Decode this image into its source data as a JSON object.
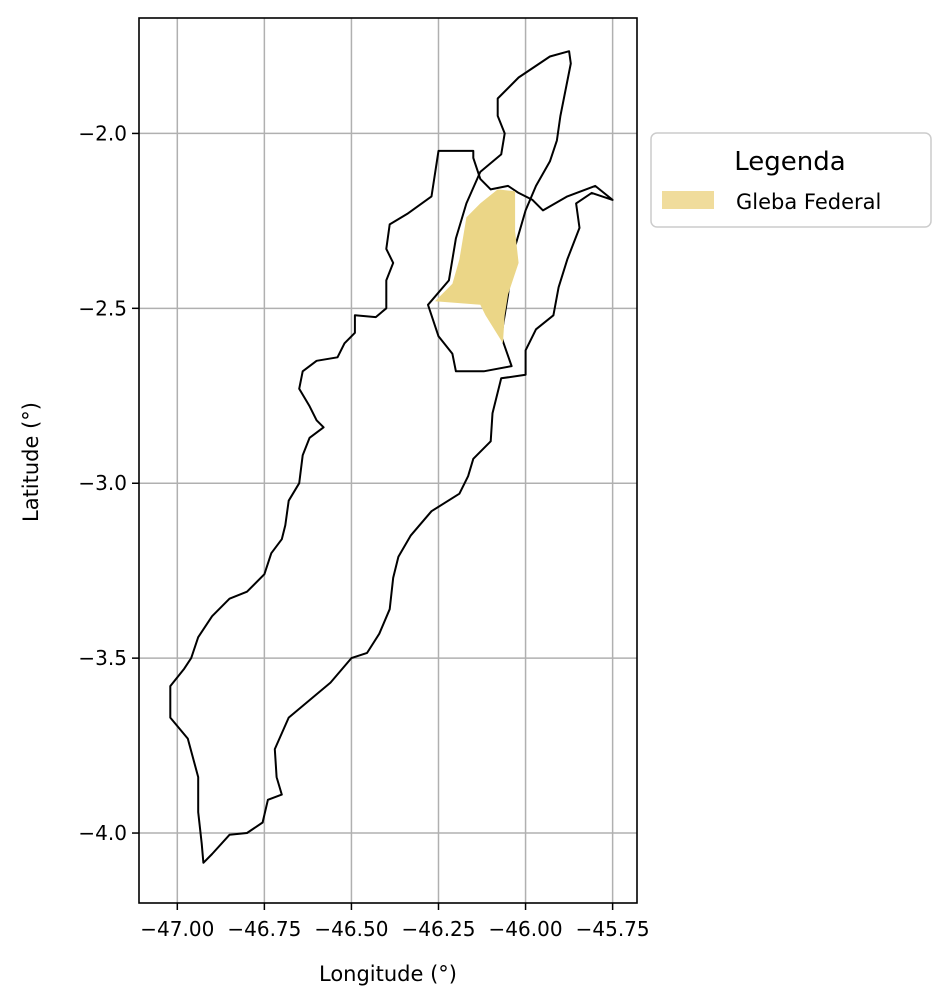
{
  "chart_data": {
    "type": "map",
    "xlabel": "Longitude (°)",
    "ylabel": "Latitude (°)",
    "xlim": [
      -47.11,
      -45.68
    ],
    "ylim": [
      -4.2,
      -1.67
    ],
    "xticks": [
      -47.0,
      -46.75,
      -46.5,
      -46.25,
      -46.0,
      -45.75
    ],
    "xtick_labels": [
      "−47.00",
      "−46.75",
      "−46.50",
      "−46.25",
      "−46.00",
      "−45.75"
    ],
    "yticks": [
      -2.0,
      -2.5,
      -3.0,
      -3.5,
      -4.0
    ],
    "ytick_labels": [
      "−2.0",
      "−2.5",
      "−3.0",
      "−3.5",
      "−4.0"
    ],
    "grid": true,
    "legend": {
      "title": "Legenda",
      "placement": "outside-right-top",
      "entries": [
        {
          "label": "Gleba Federal",
          "color": "#f0dc9c"
        }
      ]
    },
    "colors": {
      "gleba": "#ebd687",
      "outline": "#000000",
      "grid": "#b0b0b0"
    },
    "layers": [
      {
        "name": "municipality-outline",
        "coords": [
          [
            -46.925,
            -4.085
          ],
          [
            -46.9,
            -4.06
          ],
          [
            -46.85,
            -4.005
          ],
          [
            -46.8,
            -4.0
          ],
          [
            -46.755,
            -3.97
          ],
          [
            -46.74,
            -3.905
          ],
          [
            -46.7,
            -3.89
          ],
          [
            -46.715,
            -3.84
          ],
          [
            -46.72,
            -3.76
          ],
          [
            -46.68,
            -3.67
          ],
          [
            -46.62,
            -3.62
          ],
          [
            -46.56,
            -3.57
          ],
          [
            -46.5,
            -3.5
          ],
          [
            -46.455,
            -3.485
          ],
          [
            -46.42,
            -3.43
          ],
          [
            -46.39,
            -3.36
          ],
          [
            -46.38,
            -3.27
          ],
          [
            -46.365,
            -3.21
          ],
          [
            -46.33,
            -3.15
          ],
          [
            -46.27,
            -3.08
          ],
          [
            -46.19,
            -3.03
          ],
          [
            -46.165,
            -2.98
          ],
          [
            -46.15,
            -2.93
          ],
          [
            -46.1,
            -2.88
          ],
          [
            -46.095,
            -2.8
          ],
          [
            -46.07,
            -2.7
          ],
          [
            -46.0,
            -2.69
          ],
          [
            -46.0,
            -2.62
          ],
          [
            -45.97,
            -2.56
          ],
          [
            -45.92,
            -2.52
          ],
          [
            -45.905,
            -2.44
          ],
          [
            -45.88,
            -2.36
          ],
          [
            -45.845,
            -2.27
          ],
          [
            -45.855,
            -2.2
          ],
          [
            -45.81,
            -2.17
          ],
          [
            -45.75,
            -2.19
          ],
          [
            -45.8,
            -2.15
          ],
          [
            -45.88,
            -2.18
          ],
          [
            -45.95,
            -2.22
          ],
          [
            -45.98,
            -2.19
          ],
          [
            -46.02,
            -2.17
          ],
          [
            -46.05,
            -2.15
          ],
          [
            -46.1,
            -2.16
          ],
          [
            -46.13,
            -2.13
          ],
          [
            -46.15,
            -2.07
          ],
          [
            -46.15,
            -2.05
          ],
          [
            -46.25,
            -2.05
          ],
          [
            -46.27,
            -2.18
          ],
          [
            -46.34,
            -2.23
          ],
          [
            -46.39,
            -2.26
          ],
          [
            -46.4,
            -2.33
          ],
          [
            -46.38,
            -2.37
          ],
          [
            -46.4,
            -2.42
          ],
          [
            -46.4,
            -2.5
          ],
          [
            -46.43,
            -2.525
          ],
          [
            -46.49,
            -2.52
          ],
          [
            -46.49,
            -2.57
          ],
          [
            -46.52,
            -2.6
          ],
          [
            -46.54,
            -2.64
          ],
          [
            -46.6,
            -2.65
          ],
          [
            -46.64,
            -2.68
          ],
          [
            -46.65,
            -2.73
          ],
          [
            -46.62,
            -2.78
          ],
          [
            -46.6,
            -2.82
          ],
          [
            -46.58,
            -2.84
          ],
          [
            -46.62,
            -2.87
          ],
          [
            -46.64,
            -2.92
          ],
          [
            -46.65,
            -3.0
          ],
          [
            -46.68,
            -3.05
          ],
          [
            -46.69,
            -3.12
          ],
          [
            -46.7,
            -3.16
          ],
          [
            -46.73,
            -3.2
          ],
          [
            -46.75,
            -3.26
          ],
          [
            -46.8,
            -3.31
          ],
          [
            -46.85,
            -3.33
          ],
          [
            -46.9,
            -3.38
          ],
          [
            -46.94,
            -3.44
          ],
          [
            -46.96,
            -3.5
          ],
          [
            -46.98,
            -3.53
          ],
          [
            -47.02,
            -3.58
          ],
          [
            -47.02,
            -3.67
          ],
          [
            -46.97,
            -3.73
          ],
          [
            -46.94,
            -3.84
          ],
          [
            -46.94,
            -3.94
          ],
          [
            -46.93,
            -4.03
          ],
          [
            -46.925,
            -4.085
          ]
        ]
      },
      {
        "name": "island-outline",
        "coords": [
          [
            -46.04,
            -2.665
          ],
          [
            -46.07,
            -2.58
          ],
          [
            -46.05,
            -2.46
          ],
          [
            -46.035,
            -2.34
          ],
          [
            -46.0,
            -2.22
          ],
          [
            -45.97,
            -2.15
          ],
          [
            -45.93,
            -2.08
          ],
          [
            -45.91,
            -2.02
          ],
          [
            -45.9,
            -1.95
          ],
          [
            -45.87,
            -1.8
          ],
          [
            -45.875,
            -1.765
          ],
          [
            -45.93,
            -1.78
          ],
          [
            -46.02,
            -1.84
          ],
          [
            -46.08,
            -1.9
          ],
          [
            -46.08,
            -1.95
          ],
          [
            -46.06,
            -2.0
          ],
          [
            -46.07,
            -2.06
          ],
          [
            -46.13,
            -2.11
          ],
          [
            -46.17,
            -2.2
          ],
          [
            -46.2,
            -2.3
          ],
          [
            -46.22,
            -2.42
          ],
          [
            -46.28,
            -2.49
          ],
          [
            -46.25,
            -2.58
          ],
          [
            -46.21,
            -2.63
          ],
          [
            -46.2,
            -2.68
          ],
          [
            -46.12,
            -2.68
          ],
          [
            -46.04,
            -2.665
          ]
        ]
      },
      {
        "name": "gleba-federal",
        "coords": [
          [
            -46.26,
            -2.48
          ],
          [
            -46.21,
            -2.43
          ],
          [
            -46.19,
            -2.36
          ],
          [
            -46.18,
            -2.3
          ],
          [
            -46.17,
            -2.24
          ],
          [
            -46.13,
            -2.2
          ],
          [
            -46.08,
            -2.16
          ],
          [
            -46.03,
            -2.165
          ],
          [
            -46.03,
            -2.28
          ],
          [
            -46.02,
            -2.37
          ],
          [
            -46.05,
            -2.46
          ],
          [
            -46.06,
            -2.52
          ],
          [
            -46.065,
            -2.6
          ],
          [
            -46.115,
            -2.52
          ],
          [
            -46.13,
            -2.49
          ],
          [
            -46.26,
            -2.48
          ]
        ]
      }
    ]
  }
}
